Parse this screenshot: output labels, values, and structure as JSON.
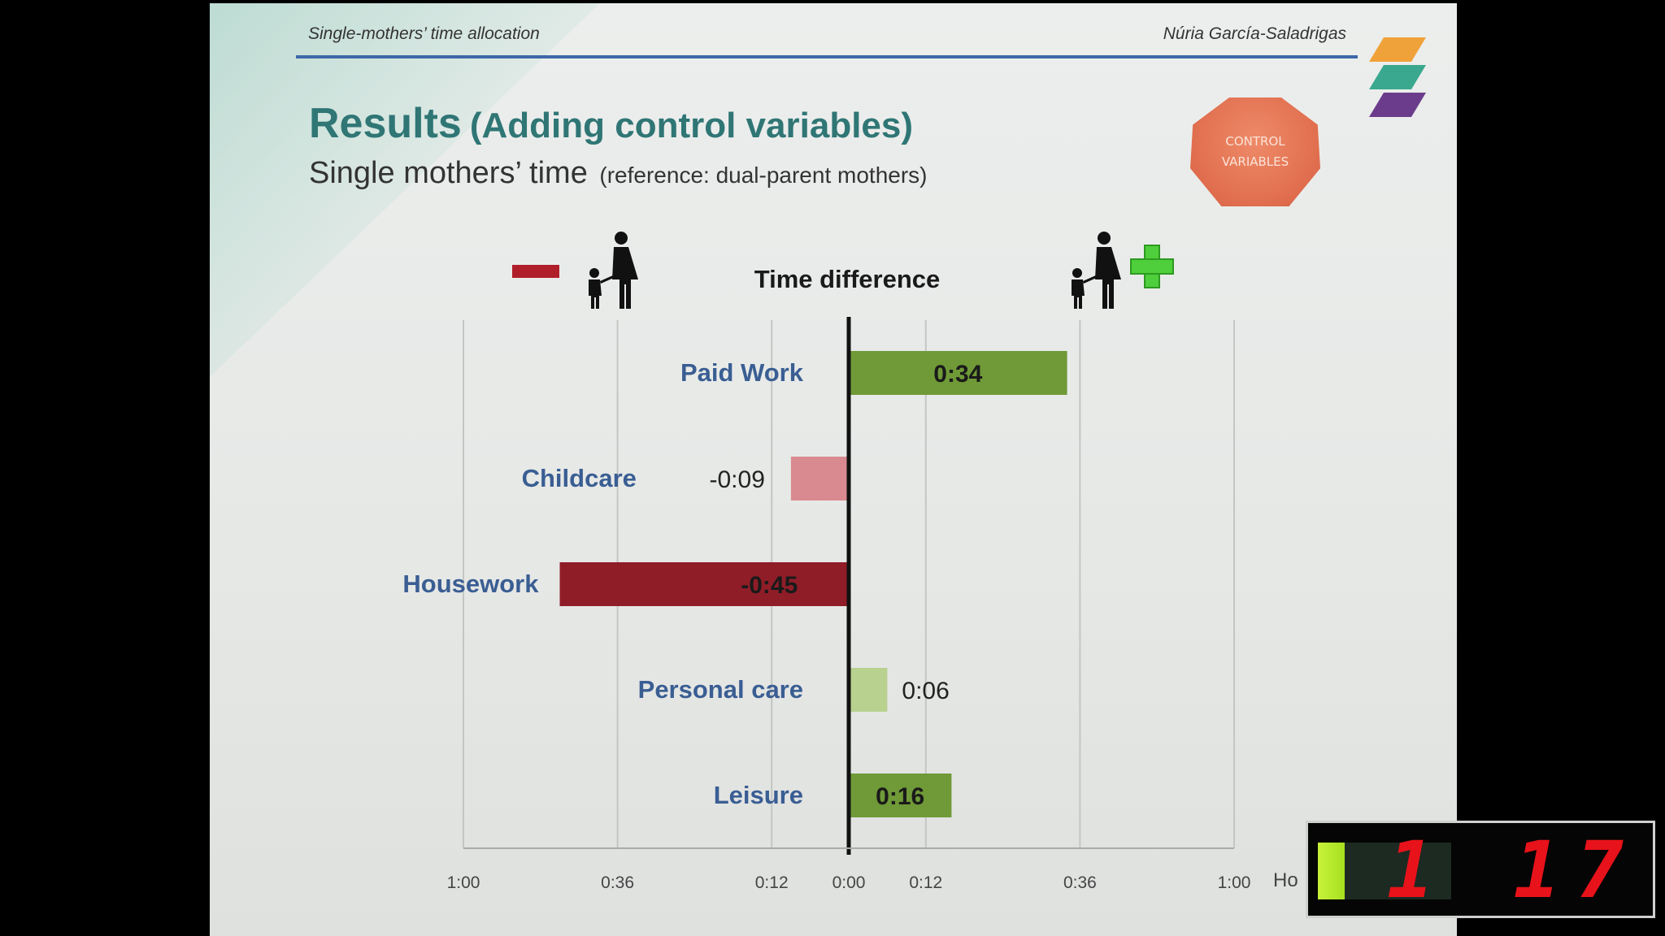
{
  "header": {
    "left": "Single-mothers’ time allocation",
    "right": "Núria García-Saladrigas"
  },
  "slide": {
    "title": "Results",
    "title_sub": "(Adding control variables)",
    "subtitle": "Single mothers’ time",
    "subtitle_note": "(reference: dual-parent mothers)",
    "badge_line1": "CONTROL",
    "badge_line2": "VARIABLES"
  },
  "colors": {
    "negative_strong": "#8f1d28",
    "negative_light": "#d88a90",
    "positive_strong": "#6f9a37",
    "positive_light": "#b8d18f",
    "category_label": "#3a5e93",
    "title": "#2f7675",
    "minus_sign": "#b01e2a",
    "plus_sign": "#4fcf3b"
  },
  "chart_data": {
    "type": "bar",
    "orientation": "horizontal",
    "title": "Time difference",
    "xlabel": "Ho",
    "xlim": [
      -60,
      60
    ],
    "x_ticks": [
      -60,
      -36,
      -12,
      0,
      12,
      36,
      60
    ],
    "x_tick_labels": [
      "1:00",
      "0:36",
      "0:12",
      "0:00",
      "0:12",
      "0:36",
      "1:00"
    ],
    "grid": true,
    "categories": [
      "Paid Work",
      "Childcare",
      "Housework",
      "Personal care",
      "Leisure"
    ],
    "values": [
      34,
      -9,
      -45,
      6,
      16
    ],
    "value_labels": [
      "0:34",
      "-0:09",
      "-0:45",
      "0:06",
      "0:16"
    ],
    "strength": [
      "strong",
      "light",
      "strong",
      "light",
      "strong"
    ],
    "legend_icons": [
      "minus-sign",
      "single-parent-family",
      "plus-sign",
      "single-parent-family"
    ]
  },
  "timer": {
    "digits": "1 17",
    "progress": 0.2
  }
}
